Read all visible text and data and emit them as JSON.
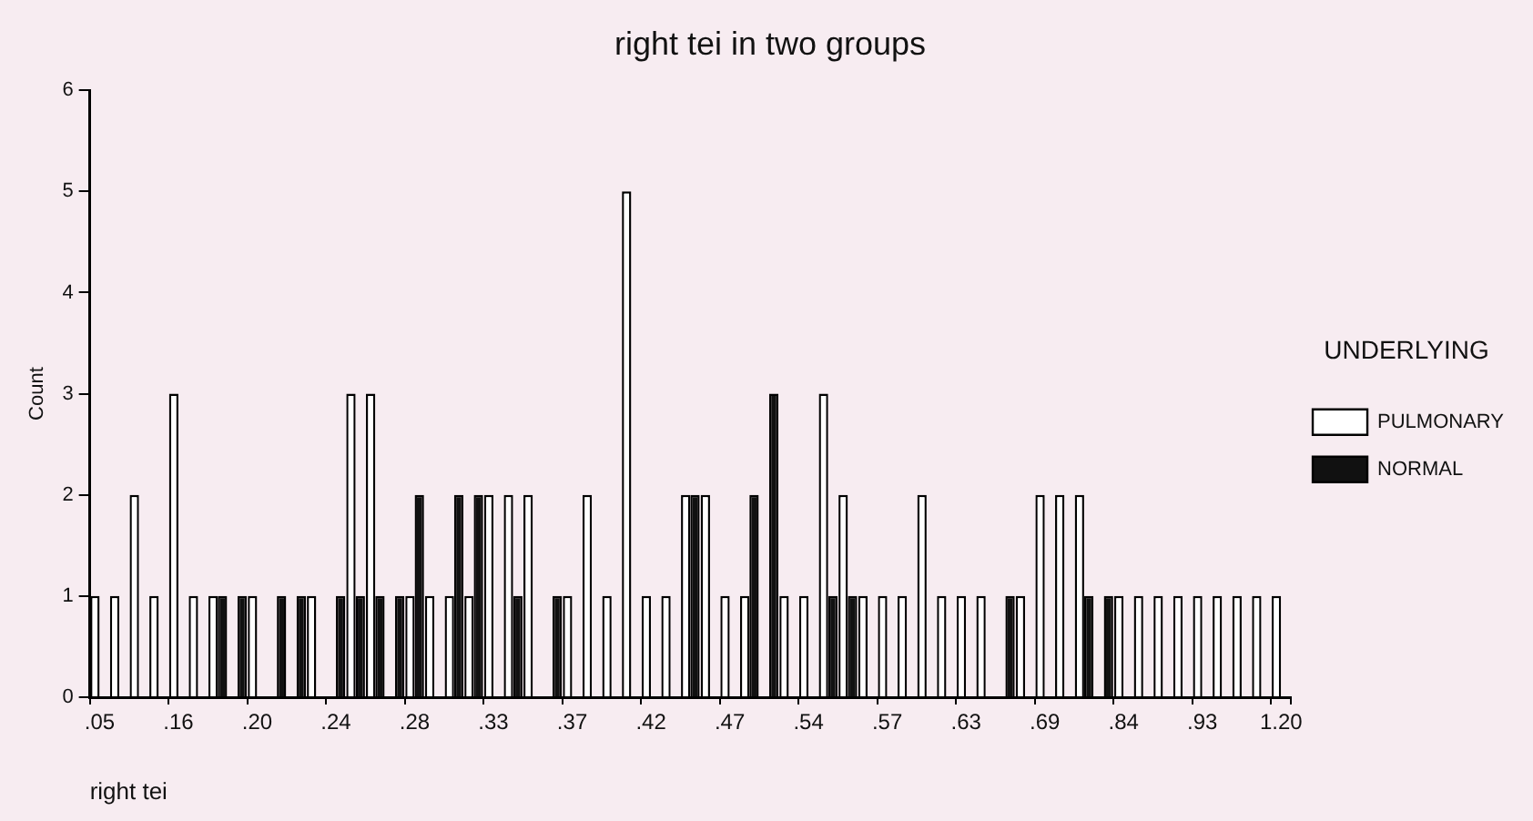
{
  "chart_data": {
    "type": "bar",
    "title": "right tei in two groups",
    "xlabel": "right tei",
    "ylabel": "Count",
    "legend_title": "UNDERLYING",
    "categories": [
      ".05",
      null,
      null,
      null,
      ".16",
      null,
      null,
      null,
      ".20",
      null,
      null,
      null,
      ".24",
      null,
      null,
      null,
      ".28",
      null,
      null,
      null,
      ".33",
      null,
      null,
      null,
      ".37",
      null,
      null,
      null,
      ".42",
      null,
      null,
      null,
      ".47",
      null,
      null,
      null,
      ".54",
      null,
      null,
      null,
      ".57",
      null,
      null,
      null,
      ".63",
      null,
      null,
      null,
      ".69",
      null,
      null,
      null,
      ".84",
      null,
      null,
      null,
      ".93",
      null,
      null,
      null,
      "1.20"
    ],
    "series": [
      {
        "name": "PULMONARY",
        "color": "#ffffff",
        "values": [
          1,
          1,
          2,
          1,
          3,
          1,
          1,
          0,
          1,
          0,
          0,
          1,
          0,
          3,
          3,
          0,
          1,
          1,
          1,
          1,
          2,
          2,
          2,
          0,
          1,
          2,
          1,
          5,
          1,
          1,
          2,
          2,
          1,
          1,
          0,
          1,
          1,
          3,
          2,
          1,
          1,
          1,
          2,
          1,
          1,
          1,
          0,
          1,
          2,
          2,
          2,
          0,
          1,
          1,
          1,
          1,
          1,
          1,
          1,
          1,
          1
        ]
      },
      {
        "name": "NORMAL",
        "color": "#111111",
        "values": [
          0,
          0,
          0,
          0,
          0,
          0,
          1,
          1,
          0,
          1,
          1,
          0,
          1,
          1,
          1,
          1,
          2,
          0,
          2,
          2,
          0,
          1,
          0,
          1,
          0,
          0,
          0,
          0,
          0,
          0,
          2,
          0,
          0,
          2,
          3,
          0,
          0,
          1,
          1,
          0,
          0,
          0,
          0,
          0,
          0,
          0,
          1,
          0,
          0,
          0,
          1,
          1,
          0,
          0,
          0,
          0,
          0,
          0,
          0,
          0,
          0
        ]
      }
    ],
    "ylim": [
      0,
      6
    ],
    "yticks": [
      0,
      1,
      2,
      3,
      4,
      5,
      6
    ],
    "grid": false,
    "legend": "right"
  }
}
